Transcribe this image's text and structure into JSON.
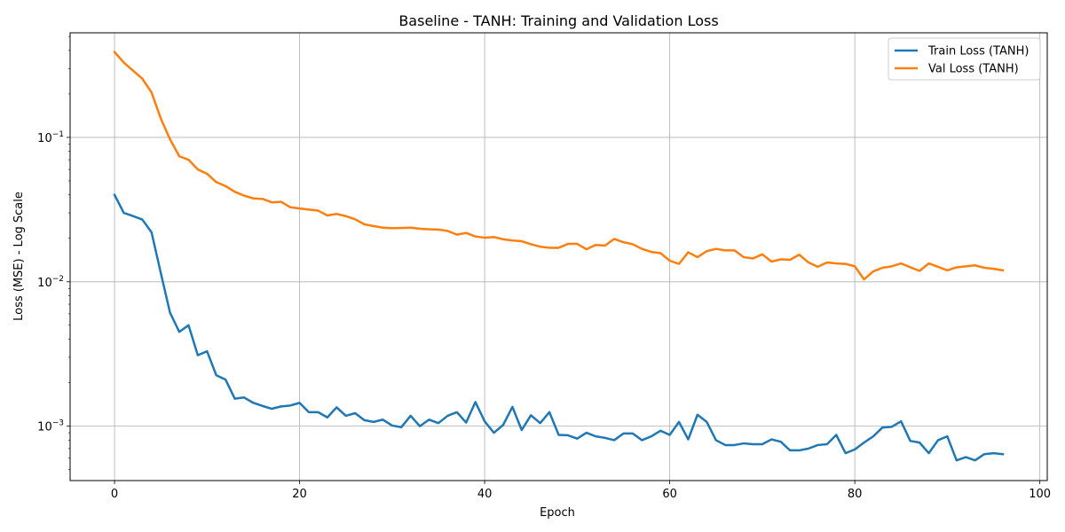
{
  "chart_data": {
    "type": "line",
    "title": "Baseline - TANH: Training and Validation Loss",
    "xlabel": "Epoch",
    "ylabel": "Loss (MSE) - Log Scale",
    "xlim": [
      -4.8,
      100.8
    ],
    "ylim": [
      0.00042,
      0.53
    ],
    "yscale": "log",
    "grid": true,
    "legend_position": "top-right",
    "x_ticks": [
      0,
      20,
      40,
      60,
      80,
      100
    ],
    "y_ticks": [
      {
        "value": 0.001,
        "label_base": "10",
        "label_exp": "−3"
      },
      {
        "value": 0.01,
        "label_base": "10",
        "label_exp": "−2"
      },
      {
        "value": 0.1,
        "label_base": "10",
        "label_exp": "−1"
      }
    ],
    "x": [
      0,
      1,
      2,
      3,
      4,
      5,
      6,
      7,
      8,
      9,
      10,
      11,
      12,
      13,
      14,
      15,
      16,
      17,
      18,
      19,
      20,
      21,
      22,
      23,
      24,
      25,
      26,
      27,
      28,
      29,
      30,
      31,
      32,
      33,
      34,
      35,
      36,
      37,
      38,
      39,
      40,
      41,
      42,
      43,
      44,
      45,
      46,
      47,
      48,
      49,
      50,
      51,
      52,
      53,
      54,
      55,
      56,
      57,
      58,
      59,
      60,
      61,
      62,
      63,
      64,
      65,
      66,
      67,
      68,
      69,
      70,
      71,
      72,
      73,
      74,
      75,
      76,
      77,
      78,
      79,
      80,
      81,
      82,
      83,
      84,
      85,
      86,
      87,
      88,
      89,
      90,
      91,
      92,
      93,
      94,
      95,
      96
    ],
    "series": [
      {
        "name": "Train Loss (TANH)",
        "color": "#1f77b4",
        "values": [
          0.04,
          0.03,
          0.0285,
          0.027,
          0.022,
          0.0115,
          0.0061,
          0.0045,
          0.005,
          0.0031,
          0.0033,
          0.00225,
          0.0021,
          0.00155,
          0.00158,
          0.00145,
          0.00138,
          0.00132,
          0.00137,
          0.00139,
          0.00145,
          0.00125,
          0.00125,
          0.00115,
          0.00135,
          0.00118,
          0.00123,
          0.0011,
          0.00107,
          0.00111,
          0.00101,
          0.000985,
          0.00118,
          0.001,
          0.00111,
          0.00105,
          0.00118,
          0.00125,
          0.00106,
          0.00147,
          0.00108,
          0.0009,
          0.00102,
          0.00136,
          0.00094,
          0.00119,
          0.00105,
          0.00125,
          0.00087,
          0.000865,
          0.00082,
          0.0009,
          0.00085,
          0.00083,
          0.0008,
          0.00089,
          0.00089,
          0.0008,
          0.00085,
          0.00093,
          0.00087,
          0.00107,
          0.00081,
          0.0012,
          0.00107,
          0.0008,
          0.00074,
          0.00074,
          0.00076,
          0.00075,
          0.00075,
          0.00081,
          0.00078,
          0.00068,
          0.00068,
          0.0007,
          0.00074,
          0.00075,
          0.00087,
          0.00065,
          0.00069,
          0.00077,
          0.00085,
          0.00098,
          0.00099,
          0.00108,
          0.00079,
          0.00077,
          0.00065,
          0.0008,
          0.00085,
          0.00058,
          0.00061,
          0.00058,
          0.00064,
          0.00065,
          0.00064
        ]
      },
      {
        "name": "Val Loss (TANH)",
        "color": "#ff7f0e",
        "values": [
          0.39,
          0.33,
          0.29,
          0.255,
          0.205,
          0.135,
          0.097,
          0.074,
          0.07,
          0.06,
          0.056,
          0.049,
          0.046,
          0.042,
          0.0395,
          0.0378,
          0.0375,
          0.0355,
          0.0358,
          0.0328,
          0.0322,
          0.0316,
          0.0311,
          0.0288,
          0.0295,
          0.0285,
          0.0271,
          0.025,
          0.0243,
          0.0237,
          0.0235,
          0.0236,
          0.0237,
          0.0233,
          0.0231,
          0.023,
          0.0225,
          0.0212,
          0.0218,
          0.0206,
          0.0202,
          0.0204,
          0.0197,
          0.0193,
          0.0191,
          0.0182,
          0.0175,
          0.0172,
          0.0172,
          0.0183,
          0.0183,
          0.0168,
          0.018,
          0.0178,
          0.0198,
          0.0188,
          0.0182,
          0.0169,
          0.0161,
          0.0158,
          0.014,
          0.0133,
          0.016,
          0.0148,
          0.0163,
          0.0169,
          0.0165,
          0.0165,
          0.0148,
          0.0145,
          0.0155,
          0.0138,
          0.0143,
          0.0142,
          0.0154,
          0.0136,
          0.0127,
          0.0136,
          0.0134,
          0.0133,
          0.0128,
          0.0104,
          0.0118,
          0.0125,
          0.0128,
          0.0134,
          0.0126,
          0.0119,
          0.0134,
          0.0127,
          0.012,
          0.0126,
          0.0128,
          0.013,
          0.0125,
          0.0123,
          0.012
        ]
      }
    ]
  }
}
